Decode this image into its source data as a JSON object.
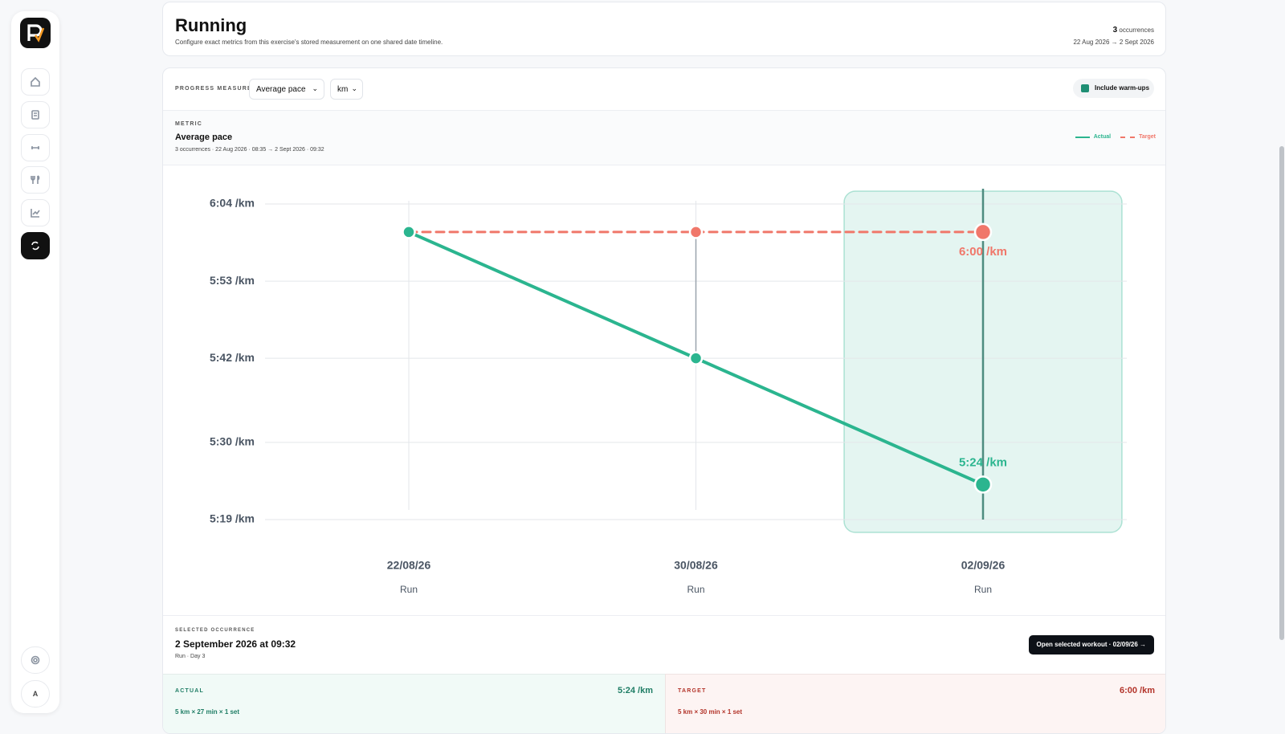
{
  "header": {
    "title": "Running",
    "subtitle": "Configure exact metrics from this exercise's stored measurement on one shared date timeline.",
    "occurrence_count": "3",
    "occurrence_word": "occurrences",
    "date_range": "22 Aug 2026 → 2 Sept 2026"
  },
  "sidebar": {
    "avatar": "A"
  },
  "controls": {
    "measure_label": "PROGRESS MEASURE",
    "measure": "Average pace",
    "unit": "km",
    "warmups": "Include warm-ups"
  },
  "metric": {
    "label": "METRIC",
    "name": "Average pace",
    "meta": "3 occurrences · 22 Aug 2026 · 08:35 → 2 Sept 2026 · 09:32"
  },
  "chart_data": {
    "type": "line",
    "categories": [
      "22/08/26",
      "30/08/26",
      "02/09/26"
    ],
    "sublabels": [
      "Run",
      "Run",
      "Run"
    ],
    "series": [
      {
        "name": "Target",
        "color": "#f0776a",
        "dashed": true,
        "values": [
          360,
          360,
          360
        ],
        "value_labels": [
          null,
          null,
          "6:00 /km"
        ]
      },
      {
        "name": "Actual",
        "color": "#2bb58f",
        "dashed": false,
        "values": [
          360,
          342,
          324
        ],
        "value_labels": [
          null,
          null,
          "5:24 /km"
        ]
      }
    ],
    "ylim": [
      319,
      364
    ],
    "yticks": [
      {
        "value": 364,
        "label": "6:04 /km"
      },
      {
        "value": 353,
        "label": "5:53 /km"
      },
      {
        "value": 342,
        "label": "5:42 /km"
      },
      {
        "value": 330,
        "label": "5:30 /km"
      },
      {
        "value": 319,
        "label": "5:19 /km"
      }
    ],
    "grid": true,
    "highlight_index": 2
  },
  "selected": {
    "label": "SELECTED OCCURRENCE",
    "title": "2 September 2026 at 09:32",
    "subtitle": "Run · Day 3",
    "button": "Open selected workout · 02/09/26 →"
  },
  "actual": {
    "label": "ACTUAL",
    "value": "5:24 /km",
    "detail": "5 km × 27 min × 1 set"
  },
  "target": {
    "label": "TARGET",
    "value": "6:00 /km",
    "detail": "5 km × 30 min × 1 set"
  }
}
